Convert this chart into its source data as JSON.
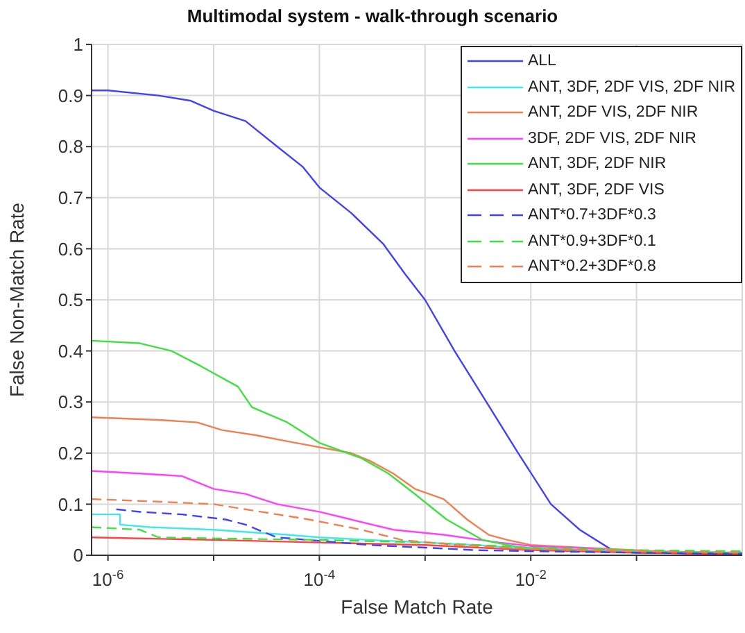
{
  "chart_data": {
    "type": "line",
    "title": "Multimodal system - walk-through scenario",
    "xlabel": "False Match Rate",
    "ylabel": "False Non-Match Rate",
    "log": "x",
    "xlim": [
      7e-07,
      1
    ],
    "xticks": [
      {
        "value": 1e-06,
        "label": "10$^{-6}$"
      },
      {
        "value": 1e-05,
        "label": null
      },
      {
        "value": 0.0001,
        "label": "10$^{-4}$"
      },
      {
        "value": 0.001,
        "label": null
      },
      {
        "value": 0.01,
        "label": "10$^{-2}$"
      },
      {
        "value": 0.1,
        "label": null
      }
    ],
    "ylim": [
      0,
      1
    ],
    "yticks": [
      0,
      0.1,
      0.2,
      0.3,
      0.4,
      0.5,
      0.6,
      0.7,
      0.8,
      0.9,
      1
    ],
    "grid": true,
    "legend": "top right",
    "line_style": "solid",
    "series": [
      {
        "name": "ALL",
        "color": "#4040ff",
        "x": [
          7e-07,
          1e-06,
          3e-06,
          6e-06,
          1e-05,
          2e-05,
          4e-05,
          7e-05,
          0.0001,
          0.0002,
          0.0004,
          0.00065,
          0.001,
          0.0019,
          0.0038,
          0.0076,
          0.0155,
          0.029,
          0.059,
          0.1,
          1
        ],
        "values": [
          0.91,
          0.91,
          0.9,
          0.89,
          0.87,
          0.85,
          0.8,
          0.76,
          0.72,
          0.67,
          0.61,
          0.55,
          0.5,
          0.4,
          0.3,
          0.2,
          0.1,
          0.05,
          0.01,
          0.005,
          0.003
        ]
      },
      {
        "name": "ANT, 3DF, 2DF VIS, 2DF NIR",
        "color": "#40e8e8",
        "x": [
          7e-07,
          1.3e-06,
          1.3e-06,
          2.5e-06,
          1e-05,
          5e-05,
          0.0001,
          0.0003,
          0.001,
          0.003,
          0.01,
          0.1,
          1
        ],
        "values": [
          0.08,
          0.08,
          0.06,
          0.055,
          0.05,
          0.04,
          0.035,
          0.03,
          0.025,
          0.02,
          0.012,
          0.008,
          0.005
        ]
      },
      {
        "name": "ANT, 2DF VIS, 2DF NIR",
        "color": "#f08050",
        "x": [
          7e-07,
          3e-06,
          7e-06,
          1.2e-05,
          2.5e-05,
          6e-05,
          0.0002,
          0.0003,
          0.0005,
          0.0008,
          0.0015,
          0.0025,
          0.004,
          0.006,
          0.01,
          0.03,
          0.1,
          0.3,
          1
        ],
        "values": [
          0.27,
          0.265,
          0.26,
          0.245,
          0.235,
          0.22,
          0.2,
          0.185,
          0.16,
          0.13,
          0.11,
          0.07,
          0.04,
          0.03,
          0.02,
          0.015,
          0.01,
          0.005,
          0.002
        ]
      },
      {
        "name": "3DF, 2DF VIS, 2DF NIR",
        "color": "#ff40ff",
        "x": [
          7e-07,
          2e-06,
          5e-06,
          1e-05,
          2e-05,
          4e-05,
          0.0001,
          0.0002,
          0.0005,
          0.0015,
          0.005,
          0.01,
          0.05
        ],
        "values": [
          0.165,
          0.16,
          0.155,
          0.13,
          0.12,
          0.1,
          0.085,
          0.07,
          0.05,
          0.04,
          0.025,
          0.018,
          0.012
        ]
      },
      {
        "name": "ANT, 3DF, 2DF NIR",
        "color": "#40e040",
        "x": [
          7e-07,
          2e-06,
          4e-06,
          7.6e-06,
          1.7e-05,
          2.3e-05,
          5e-05,
          0.0001,
          0.00025,
          0.00045,
          0.0008,
          0.0016,
          0.0035,
          0.008,
          0.05,
          1
        ],
        "values": [
          0.42,
          0.415,
          0.4,
          0.37,
          0.33,
          0.29,
          0.26,
          0.22,
          0.19,
          0.16,
          0.12,
          0.07,
          0.03,
          0.015,
          0.008,
          0.005
        ]
      },
      {
        "name": "ANT, 3DF, 2DF VIS",
        "color": "#ff4040",
        "x": [
          7e-07,
          1e-05,
          0.0001,
          0.001,
          0.01,
          0.1,
          1
        ],
        "values": [
          0.035,
          0.03,
          0.025,
          0.02,
          0.01,
          0.005,
          0.002
        ]
      },
      {
        "name": "ANT*0.7+3DF*0.3",
        "color": "#4040ff",
        "line_style": "dashed",
        "x": [
          1.2e-06,
          2e-06,
          5e-06,
          1.3e-05,
          2e-05,
          3e-05,
          4e-05,
          0.0003,
          0.001,
          0.003,
          0.01,
          0.1,
          1
        ],
        "values": [
          0.09,
          0.085,
          0.08,
          0.07,
          0.06,
          0.045,
          0.035,
          0.02,
          0.015,
          0.01,
          0.008,
          0.005,
          0.003
        ]
      },
      {
        "name": "ANT*0.9+3DF*0.1",
        "color": "#40e040",
        "line_style": "dashed",
        "x": [
          7e-07,
          2e-06,
          3e-06,
          1e-05,
          0.0001,
          0.001,
          0.01,
          0.1,
          1
        ],
        "values": [
          0.055,
          0.05,
          0.035,
          0.033,
          0.03,
          0.025,
          0.015,
          0.01,
          0.008
        ]
      },
      {
        "name": "ANT*0.2+3DF*0.8",
        "color": "#f08050",
        "line_style": "dashed",
        "x": [
          7e-07,
          3e-06,
          1e-05,
          2e-05,
          8e-05,
          0.00025,
          0.0006,
          0.002,
          0.01,
          0.1,
          1
        ],
        "values": [
          0.11,
          0.105,
          0.1,
          0.09,
          0.07,
          0.05,
          0.03,
          0.02,
          0.012,
          0.008,
          0.005
        ]
      }
    ]
  }
}
